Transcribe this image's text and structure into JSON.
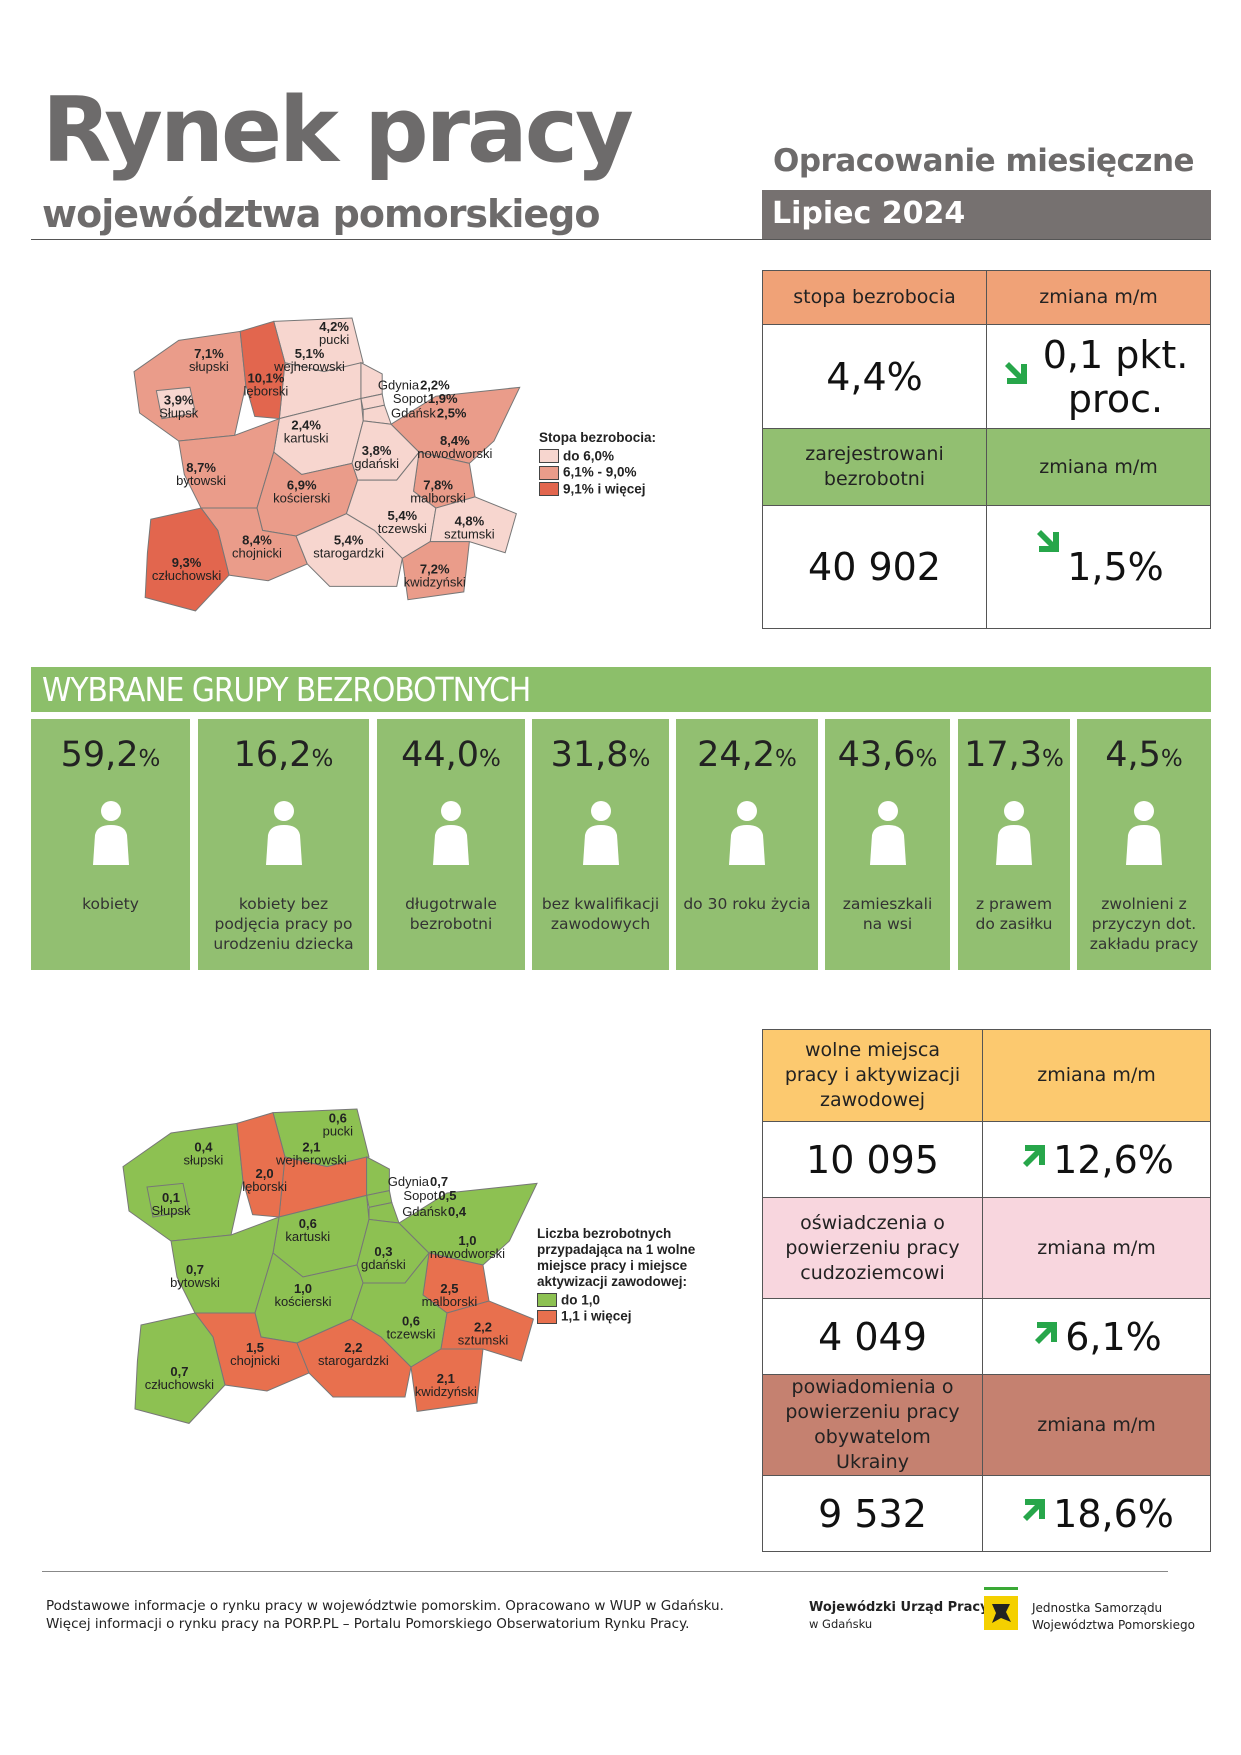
{
  "header": {
    "title": "Rynek pracy",
    "subtitle": "województwa pomorskiego",
    "report_type": "Opracowanie miesięczne",
    "period": "Lipiec 2024"
  },
  "unemployment_table": {
    "rows": [
      {
        "cells": [
          "stopa bezrobocia",
          "zmiana m/m"
        ],
        "color": "#f0a277"
      },
      {
        "cells": [
          "4,4%",
          "0,1 pkt. proc."
        ]
      },
      {
        "cells": [
          "zarejestrowani bezrobotni",
          "zmiana m/m"
        ],
        "color": "#92bf71"
      },
      {
        "cells": [
          "40 902",
          "1,5%"
        ]
      }
    ]
  },
  "unemployment_map": {
    "legend": {
      "title": "Stopa bezrobocia:",
      "items": [
        {
          "label": "do 6,0%",
          "color": "#f7d6cf"
        },
        {
          "label": "6,1% - 9,0%",
          "color": "#ea9c8a"
        },
        {
          "label": "9,1% i więcej",
          "color": "#e2664e"
        }
      ]
    },
    "regions": [
      {
        "name": "pucki",
        "value": "4,2%",
        "color": "#f7d6cf"
      },
      {
        "name": "słupski",
        "value": "7,1%",
        "color": "#ea9c8a"
      },
      {
        "name": "wejherowski",
        "value": "5,1%",
        "color": "#f7d6cf"
      },
      {
        "name": "lęborski",
        "value": "10,1%",
        "color": "#e2664e"
      },
      {
        "name": "Słupsk",
        "value": "3,9%",
        "color": "#f7d6cf"
      },
      {
        "name": "Gdynia",
        "value": "2,2%",
        "color": "#f7d6cf"
      },
      {
        "name": "Sopot",
        "value": "1,9%",
        "color": "#f7d6cf"
      },
      {
        "name": "Gdańsk",
        "value": "2,5%",
        "color": "#f7d6cf"
      },
      {
        "name": "kartuski",
        "value": "2,4%",
        "color": "#f7d6cf"
      },
      {
        "name": "gdański",
        "value": "3,8%",
        "color": "#f7d6cf"
      },
      {
        "name": "nowodworski",
        "value": "8,4%",
        "color": "#ea9c8a"
      },
      {
        "name": "bytowski",
        "value": "8,7%",
        "color": "#ea9c8a"
      },
      {
        "name": "kościerski",
        "value": "6,9%",
        "color": "#ea9c8a"
      },
      {
        "name": "malborski",
        "value": "7,8%",
        "color": "#ea9c8a"
      },
      {
        "name": "tczewski",
        "value": "5,4%",
        "color": "#f7d6cf"
      },
      {
        "name": "sztumski",
        "value": "4,8%",
        "color": "#f7d6cf"
      },
      {
        "name": "chojnicki",
        "value": "8,4%",
        "color": "#ea9c8a"
      },
      {
        "name": "starogardzki",
        "value": "5,4%",
        "color": "#f7d6cf"
      },
      {
        "name": "człuchowski",
        "value": "9,3%",
        "color": "#e2664e"
      },
      {
        "name": "kwidzyński",
        "value": "7,2%",
        "color": "#ea9c8a"
      }
    ]
  },
  "groups": {
    "title": "WYBRANE GRUPY BEZROBOTNYCH",
    "items": [
      {
        "value": "59,2",
        "unit": "%",
        "label": "kobiety"
      },
      {
        "value": "16,2",
        "unit": "%",
        "label": "kobiety bez podjęcia pracy po urodzeniu dziecka"
      },
      {
        "value": "44,0",
        "unit": "%",
        "label": "długotrwale bezrobotni"
      },
      {
        "value": "31,8",
        "unit": "%",
        "label": "bez kwalifikacji zawodowych"
      },
      {
        "value": "24,2",
        "unit": "%",
        "label": "do 30 roku życia"
      },
      {
        "value": "43,6",
        "unit": "%",
        "label": "zamieszkali na wsi"
      },
      {
        "value": "17,3",
        "unit": "%",
        "label": "z prawem do zasiłku"
      },
      {
        "value": "4,5",
        "unit": "%",
        "label": "zwolnieni z przyczyn dot. zakładu pracy"
      }
    ]
  },
  "offers_table": {
    "rows": [
      {
        "cells": [
          "wolne miejsca pracy i aktywizacji zawodowej",
          "zmiana m/m"
        ],
        "color": "#fcc96f"
      },
      {
        "cells": [
          "10 095",
          "12,6%"
        ]
      },
      {
        "cells": [
          "oświadczenia o powierzeniu pracy cudzoziemcowi",
          "zmiana m/m"
        ],
        "color": "#f8d6de"
      },
      {
        "cells": [
          "4 049",
          "6,1%"
        ]
      },
      {
        "cells": [
          "powiadomienia o powierzeniu pracy obywatelom Ukrainy",
          "zmiana m/m"
        ],
        "color": "#c58170"
      },
      {
        "cells": [
          "9 532",
          "18,6%"
        ]
      }
    ]
  },
  "offers_map": {
    "legend": {
      "title": "Liczba bezrobotnych przypadająca na 1 wolne miejsce pracy i miejsce aktywizacji zawodowej:",
      "items": [
        {
          "label": "do 1,0",
          "color": "#8dc152"
        },
        {
          "label": "1,1 i więcej",
          "color": "#e8704e"
        }
      ]
    },
    "regions": [
      {
        "name": "pucki",
        "value": "0,6",
        "color": "#8dc152"
      },
      {
        "name": "słupski",
        "value": "0,4",
        "color": "#8dc152"
      },
      {
        "name": "wejherowski",
        "value": "2,1",
        "color": "#e8704e"
      },
      {
        "name": "lęborski",
        "value": "2,0",
        "color": "#e8704e"
      },
      {
        "name": "Słupsk",
        "value": "0,1",
        "color": "#8dc152"
      },
      {
        "name": "Gdynia",
        "value": "0,7",
        "color": "#8dc152"
      },
      {
        "name": "Sopot",
        "value": "0,5",
        "color": "#8dc152"
      },
      {
        "name": "Gdańsk",
        "value": "0,4",
        "color": "#8dc152"
      },
      {
        "name": "kartuski",
        "value": "0,6",
        "color": "#8dc152"
      },
      {
        "name": "gdański",
        "value": "0,3",
        "color": "#8dc152"
      },
      {
        "name": "nowodworski",
        "value": "1,0",
        "color": "#8dc152"
      },
      {
        "name": "bytowski",
        "value": "0,7",
        "color": "#8dc152"
      },
      {
        "name": "kościerski",
        "value": "1,0",
        "color": "#8dc152"
      },
      {
        "name": "malborski",
        "value": "2,5",
        "color": "#e8704e"
      },
      {
        "name": "tczewski",
        "value": "0,6",
        "color": "#8dc152"
      },
      {
        "name": "sztumski",
        "value": "2,2",
        "color": "#e8704e"
      },
      {
        "name": "chojnicki",
        "value": "1,5",
        "color": "#e8704e"
      },
      {
        "name": "starogardzki",
        "value": "2,2",
        "color": "#e8704e"
      },
      {
        "name": "człuchowski",
        "value": "0,7",
        "color": "#8dc152"
      },
      {
        "name": "kwidzyński",
        "value": "2,1",
        "color": "#e8704e"
      }
    ]
  },
  "footer": {
    "lines": [
      "Podstawowe informacje o rynku pracy w województwie pomorskim. Opracowano w WUP w Gdańsku.",
      "Więcej informacji o rynku pracy na PORP.PL – Portalu Pomorskiego Obserwatorium Rynku Pracy."
    ],
    "logo_wup": [
      "Wojewódzki Urząd Pracy",
      "w Gdańsku"
    ],
    "logo_region": [
      "Jednostka Samorządu",
      "Województwa Pomorskiego"
    ]
  }
}
